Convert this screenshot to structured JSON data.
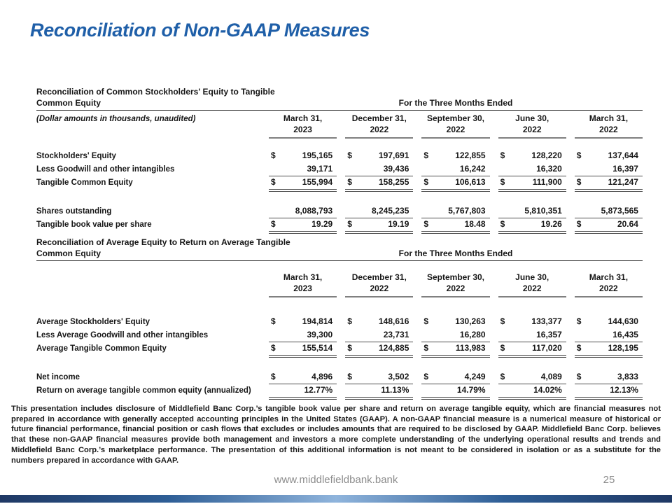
{
  "slide_title": "Reconciliation of Non-GAAP Measures",
  "colors": {
    "title_blue": "#1F5FA8",
    "footer_gray": "#8C8C8C",
    "bar_dark": "#1F3864",
    "bar_mid": "#2E5E96",
    "bar_light": "#8FB4DC"
  },
  "table1": {
    "title_line1": "Reconciliation of Common Stockholders' Equity to Tangible",
    "title_line2": "Common Equity",
    "period_header": "For the Three Months Ended",
    "note": "(Dollar amounts in thousands, unaudited)",
    "columns": [
      {
        "month": "March 31,",
        "year": "2023"
      },
      {
        "month": "December 31,",
        "year": "2022"
      },
      {
        "month": "September 30,",
        "year": "2022"
      },
      {
        "month": "June 30,",
        "year": "2022"
      },
      {
        "month": "March 31,",
        "year": "2022"
      }
    ],
    "rows": [
      {
        "label": "Stockholders' Equity",
        "dollar": true,
        "underline": "none",
        "values": [
          "195,165",
          "197,691",
          "122,855",
          "128,220",
          "137,644"
        ]
      },
      {
        "label": "Less Goodwill and other intangibles",
        "dollar": false,
        "underline": "single",
        "values": [
          "39,171",
          "39,436",
          "16,242",
          "16,320",
          "16,397"
        ]
      },
      {
        "label": "Tangible Common Equity",
        "dollar": true,
        "underline": "double",
        "values": [
          "155,994",
          "158,255",
          "106,613",
          "111,900",
          "121,247"
        ]
      },
      {
        "spacer": true
      },
      {
        "label": "Shares outstanding",
        "dollar": false,
        "underline": "single",
        "values": [
          "8,088,793",
          "8,245,235",
          "5,767,803",
          "5,810,351",
          "5,873,565"
        ]
      },
      {
        "label": "Tangible book value per share",
        "dollar": true,
        "underline": "double",
        "values": [
          "19.29",
          "19.19",
          "18.48",
          "19.26",
          "20.64"
        ]
      }
    ]
  },
  "table2": {
    "title_line1": "Reconciliation of Average Equity to Return on Average Tangible",
    "title_line2": "Common Equity",
    "period_header": "For the Three Months Ended",
    "note": "",
    "columns": [
      {
        "month": "March 31,",
        "year": "2023"
      },
      {
        "month": "December 31,",
        "year": "2022"
      },
      {
        "month": "September 30,",
        "year": "2022"
      },
      {
        "month": "June 30,",
        "year": "2022"
      },
      {
        "month": "March 31,",
        "year": "2022"
      }
    ],
    "rows": [
      {
        "label": "Average Stockholders' Equity",
        "dollar": true,
        "underline": "none",
        "values": [
          "194,814",
          "148,616",
          "130,263",
          "133,377",
          "144,630"
        ]
      },
      {
        "label": "Less Average Goodwill and other intangibles",
        "dollar": false,
        "underline": "single",
        "values": [
          "39,300",
          "23,731",
          "16,280",
          "16,357",
          "16,435"
        ]
      },
      {
        "label": "Average Tangible Common Equity",
        "dollar": true,
        "underline": "double",
        "values": [
          "155,514",
          "124,885",
          "113,983",
          "117,020",
          "128,195"
        ]
      },
      {
        "spacer": true
      },
      {
        "label": "Net income",
        "dollar": true,
        "underline": "single",
        "values": [
          "4,896",
          "3,502",
          "4,249",
          "4,089",
          "3,833"
        ]
      },
      {
        "label": "Return on average tangible common equity (annualized)",
        "dollar": false,
        "underline": "double",
        "values": [
          "12.77%",
          "11.13%",
          "14.79%",
          "14.02%",
          "12.13%"
        ]
      }
    ]
  },
  "disclaimer": "This presentation includes disclosure of Middlefield Banc Corp.’s tangible book value per share and return on average tangible equity, which are financial measures not prepared in accordance with generally accepted accounting principles in the United States (GAAP). A non-GAAP financial measure is a numerical measure of historical or future financial performance, financial position or cash flows that excludes or includes amounts that are required to be disclosed by GAAP. Middlefield Banc Corp. believes that these non-GAAP financial measures provide both management and investors a more complete understanding of the underlying operational results and trends and Middlefield Banc Corp.’s marketplace performance. The presentation of this additional information is not meant to be considered in isolation or as a substitute for the numbers prepared in accordance with GAAP.",
  "footer": {
    "url": "www.middlefieldbank.bank",
    "page": "25"
  }
}
